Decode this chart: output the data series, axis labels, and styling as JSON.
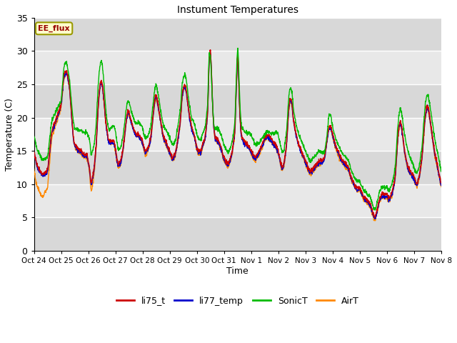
{
  "title": "Instument Temperatures",
  "xlabel": "Time",
  "ylabel": "Temperature (C)",
  "ylim": [
    0,
    35
  ],
  "yticks": [
    0,
    5,
    10,
    15,
    20,
    25,
    30,
    35
  ],
  "xtick_labels": [
    "Oct 24",
    "Oct 25",
    "Oct 26",
    "Oct 27",
    "Oct 28",
    "Oct 29",
    "Oct 30",
    "Oct 31",
    "Nov 1",
    "Nov 2",
    "Nov 3",
    "Nov 4",
    "Nov 5",
    "Nov 6",
    "Nov 7",
    "Nov 8"
  ],
  "colors": {
    "li75_t": "#cc0000",
    "li77_temp": "#0000cc",
    "SonicT": "#00bb00",
    "AirT": "#ff8800"
  },
  "annotation_text": "EE_flux",
  "annotation_color": "#990000",
  "annotation_bg": "#ffffcc",
  "annotation_border": "#999900",
  "plot_bg": "#e8e8e8",
  "fig_bg": "#ffffff",
  "grid_color": "#ffffff",
  "legend_entries": [
    "li75_t",
    "li77_temp",
    "SonicT",
    "AirT"
  ],
  "line_width": 1.0,
  "band_colors": [
    "#d8d8d8",
    "#e8e8e8"
  ]
}
